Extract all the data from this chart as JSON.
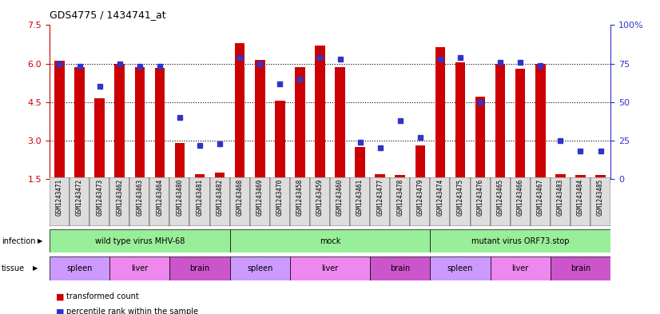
{
  "title": "GDS4775 / 1434741_at",
  "samples": [
    "GSM1243471",
    "GSM1243472",
    "GSM1243473",
    "GSM1243462",
    "GSM1243463",
    "GSM1243464",
    "GSM1243480",
    "GSM1243481",
    "GSM1243482",
    "GSM1243468",
    "GSM1243469",
    "GSM1243470",
    "GSM1243458",
    "GSM1243459",
    "GSM1243460",
    "GSM1243461",
    "GSM1243477",
    "GSM1243478",
    "GSM1243479",
    "GSM1243474",
    "GSM1243475",
    "GSM1243476",
    "GSM1243465",
    "GSM1243466",
    "GSM1243467",
    "GSM1243483",
    "GSM1243484",
    "GSM1243485"
  ],
  "transformed_count": [
    6.1,
    5.85,
    4.65,
    6.0,
    5.85,
    5.82,
    2.9,
    1.7,
    1.75,
    6.8,
    6.15,
    4.55,
    5.85,
    6.7,
    5.85,
    2.75,
    1.7,
    1.65,
    2.8,
    6.65,
    6.05,
    4.7,
    6.0,
    5.8,
    6.0,
    1.7,
    1.65,
    1.65
  ],
  "percentile_rank": [
    75,
    73,
    60,
    75,
    73,
    73,
    40,
    22,
    23,
    79,
    75,
    62,
    65,
    79,
    78,
    24,
    20,
    38,
    27,
    78,
    79,
    50,
    76,
    76,
    74,
    25,
    18,
    18
  ],
  "ylim_left": [
    1.5,
    7.5
  ],
  "ylim_right": [
    0,
    100
  ],
  "yticks_left": [
    1.5,
    3.0,
    4.5,
    6.0,
    7.5
  ],
  "yticks_right": [
    0,
    25,
    50,
    75,
    100
  ],
  "bar_color": "#cc0000",
  "dot_color": "#3333cc",
  "infection_groups": [
    {
      "label": "wild type virus MHV-68",
      "start": 0,
      "end": 9
    },
    {
      "label": "mock",
      "start": 9,
      "end": 19
    },
    {
      "label": "mutant virus ORF73.stop",
      "start": 19,
      "end": 28
    }
  ],
  "infection_color": "#99ee99",
  "tissue_groups": [
    {
      "label": "spleen",
      "start": 0,
      "end": 3,
      "type": "spleen"
    },
    {
      "label": "liver",
      "start": 3,
      "end": 6,
      "type": "liver"
    },
    {
      "label": "brain",
      "start": 6,
      "end": 9,
      "type": "brain"
    },
    {
      "label": "spleen",
      "start": 9,
      "end": 12,
      "type": "spleen"
    },
    {
      "label": "liver",
      "start": 12,
      "end": 16,
      "type": "liver"
    },
    {
      "label": "brain",
      "start": 16,
      "end": 19,
      "type": "brain"
    },
    {
      "label": "spleen",
      "start": 19,
      "end": 22,
      "type": "spleen"
    },
    {
      "label": "liver",
      "start": 22,
      "end": 25,
      "type": "liver"
    },
    {
      "label": "brain",
      "start": 25,
      "end": 28,
      "type": "brain"
    }
  ],
  "tissue_colors": {
    "spleen": "#cc99ff",
    "liver": "#ee88ee",
    "brain": "#cc55cc"
  },
  "infection_label": "infection",
  "tissue_label": "tissue",
  "legend_items": [
    {
      "label": "transformed count",
      "color": "#cc0000"
    },
    {
      "label": "percentile rank within the sample",
      "color": "#3333cc"
    }
  ],
  "background_color": "#ffffff",
  "bar_width": 0.5,
  "xtick_bg": "#dddddd"
}
